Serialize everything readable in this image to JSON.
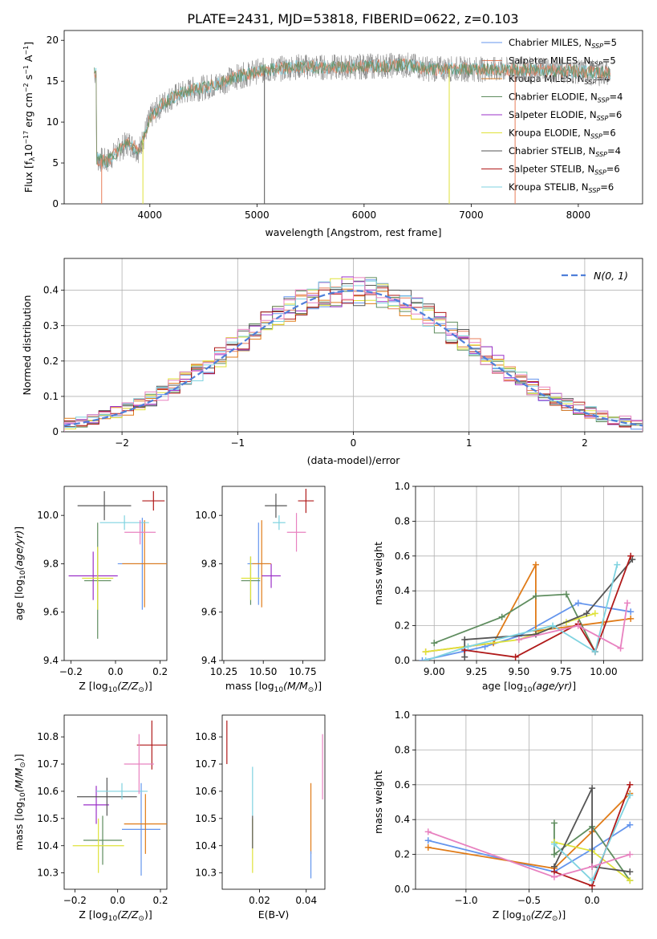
{
  "figure": {
    "title": "PLATE=2431, MJD=53818, FIBERID=0622, z=0.103"
  },
  "colors": {
    "Chabrier MILES": "#6495ed",
    "Salpeter MILES": "#e87d5a",
    "Kroupa MILES": "#e07b18",
    "Chabrier ELODIE": "#5f8d5f",
    "Salpeter ELODIE": "#9b30c8",
    "Kroupa ELODIE": "#dfe23a",
    "Chabrier STELIB": "#555555",
    "Salpeter STELIB": "#b01a1a",
    "Kroupa STELIB": "#7fd3e0",
    "data": "#808080",
    "normal": "#4f7fd9",
    "pink": "#e882c0",
    "olive": "#9acd32"
  },
  "chart_data": [
    {
      "id": "spectrum",
      "type": "line",
      "title": "PLATE=2431, MJD=53818, FIBERID=0622, z=0.103",
      "xlabel": "wavelength [Angstrom, rest frame]",
      "ylabel": "Flux [f",
      "xlim": [
        3200,
        8600
      ],
      "ylim": [
        0,
        21.2
      ],
      "xticks": [
        4000,
        5000,
        6000,
        7000,
        8000
      ],
      "yticks": [
        0,
        5,
        10,
        15,
        20
      ],
      "legend_position": "right",
      "legend": [
        {
          "label": "Chabrier MILES",
          "n": "5"
        },
        {
          "label": "Salpeter MILES",
          "n": "5"
        },
        {
          "label": "Kroupa MILES",
          "n": "4"
        },
        {
          "label": "Chabrier ELODIE",
          "n": "4"
        },
        {
          "label": "Salpeter ELODIE",
          "n": "6"
        },
        {
          "label": "Kroupa ELODIE",
          "n": "6"
        },
        {
          "label": "Chabrier STELIB",
          "n": "4"
        },
        {
          "label": "Salpeter STELIB",
          "n": "6"
        },
        {
          "label": "Kroupa STELIB",
          "n": "6"
        }
      ],
      "nssp_label": "N",
      "nssp_sub": "SSP",
      "series": {
        "x": [
          3500,
          3600,
          3700,
          3800,
          3900,
          4000,
          4100,
          4200,
          4300,
          4400,
          4500,
          4600,
          4700,
          4800,
          4900,
          5000,
          5200,
          5400,
          5600,
          5800,
          6000,
          6200,
          6400,
          6600,
          6800,
          7000,
          7200,
          7400,
          7600,
          7800,
          8000,
          8200,
          8300
        ],
        "y": [
          5.5,
          5.2,
          6.5,
          7.5,
          6.5,
          10.5,
          12.0,
          13.0,
          13.5,
          14.0,
          14.2,
          14.5,
          15.0,
          15.5,
          15.8,
          16.2,
          16.5,
          16.8,
          16.7,
          16.7,
          16.8,
          16.9,
          17.0,
          16.5,
          16.5,
          16.5,
          16.4,
          16.4,
          16.4,
          16.3,
          16.2,
          16.0,
          16.0
        ]
      }
    },
    {
      "id": "residuals",
      "type": "histogram",
      "xlabel": "(data-model)/error",
      "ylabel": "Normed distribution",
      "xlim": [
        -2.5,
        2.5
      ],
      "ylim": [
        0,
        0.49
      ],
      "xticks": [
        -2,
        -1,
        0,
        1,
        2
      ],
      "yticks": [
        0.0,
        0.1,
        0.2,
        0.3,
        0.4
      ],
      "grid": true,
      "legend_position": "top-right",
      "normal_label": "N(0, 1)",
      "bin_width": 0.1
    },
    {
      "id": "age-vs-z",
      "type": "scatter",
      "xlabel": "Z [log",
      "ylabel": "age  [log",
      "xlim": [
        -0.23,
        0.23
      ],
      "ylim": [
        9.4,
        10.12
      ],
      "xticks": [
        -0.2,
        0.0,
        0.2
      ],
      "yticks": [
        9.4,
        9.6,
        9.8,
        10.0
      ],
      "points": [
        {
          "model": "Chabrier MILES",
          "x": 0.12,
          "y": 9.8,
          "xerr": 0.11,
          "yerr": 0.19
        },
        {
          "model": "Kroupa MILES",
          "x": 0.13,
          "y": 9.8,
          "xerr": 0.1,
          "yerr": 0.18
        },
        {
          "model": "Chabrier ELODIE",
          "x": -0.08,
          "y": 9.73,
          "xerr": 0.06,
          "yerr": 0.24
        },
        {
          "model": "Salpeter ELODIE",
          "x": -0.1,
          "y": 9.75,
          "xerr": 0.11,
          "yerr": 0.1
        },
        {
          "model": "Kroupa ELODIE",
          "x": -0.08,
          "y": 9.74,
          "xerr": 0.07,
          "yerr": 0.13
        },
        {
          "model": "Chabrier STELIB",
          "x": -0.05,
          "y": 10.04,
          "xerr": 0.12,
          "yerr": 0.06
        },
        {
          "model": "Salpeter STELIB",
          "x": 0.17,
          "y": 10.06,
          "xerr": 0.05,
          "yerr": 0.04
        },
        {
          "model": "Kroupa STELIB",
          "x": 0.04,
          "y": 9.97,
          "xerr": 0.11,
          "yerr": 0.03
        },
        {
          "model": "pink",
          "x": 0.11,
          "y": 9.93,
          "xerr": 0.07,
          "yerr": 0.05
        }
      ]
    },
    {
      "id": "age-vs-mass",
      "type": "scatter",
      "xlabel": "mass [log",
      "ylabel": "",
      "xlim": [
        10.24,
        10.89
      ],
      "ylim": [
        9.4,
        10.12
      ],
      "xticks": [
        10.25,
        10.5,
        10.75
      ],
      "yticks": [
        9.4,
        9.6,
        9.8,
        10.0
      ],
      "points": [
        {
          "model": "Chabrier MILES",
          "x": 10.47,
          "y": 9.8,
          "xerr": 0.07,
          "yerr": 0.17
        },
        {
          "model": "Kroupa MILES",
          "x": 10.49,
          "y": 9.8,
          "xerr": 0.06,
          "yerr": 0.18
        },
        {
          "model": "Chabrier ELODIE",
          "x": 10.42,
          "y": 9.73,
          "xerr": 0.06,
          "yerr": 0.1
        },
        {
          "model": "Salpeter ELODIE",
          "x": 10.55,
          "y": 9.75,
          "xerr": 0.06,
          "yerr": 0.05
        },
        {
          "model": "Kroupa ELODIE",
          "x": 10.42,
          "y": 9.74,
          "xerr": 0.06,
          "yerr": 0.09
        },
        {
          "model": "Chabrier STELIB",
          "x": 10.58,
          "y": 10.04,
          "xerr": 0.07,
          "yerr": 0.05
        },
        {
          "model": "Salpeter STELIB",
          "x": 10.77,
          "y": 10.06,
          "xerr": 0.05,
          "yerr": 0.05
        },
        {
          "model": "Kroupa STELIB",
          "x": 10.6,
          "y": 9.97,
          "xerr": 0.04,
          "yerr": 0.03
        },
        {
          "model": "pink",
          "x": 10.71,
          "y": 9.93,
          "xerr": 0.06,
          "yerr": 0.08
        }
      ]
    },
    {
      "id": "mass-weight-vs-age",
      "type": "line",
      "xlabel": "age  [log",
      "ylabel": "mass weight",
      "xlim": [
        8.89,
        10.23
      ],
      "ylim": [
        0,
        1
      ],
      "xticks": [
        9.0,
        9.25,
        9.5,
        9.75,
        10.0
      ],
      "yticks": [
        0.0,
        0.2,
        0.4,
        0.6,
        0.8,
        1.0
      ],
      "grid": true,
      "series": [
        {
          "model": "Chabrier MILES",
          "x": [
            8.93,
            9.3,
            9.5,
            9.85,
            10.16
          ],
          "y": [
            0.0,
            0.08,
            0.14,
            0.33,
            0.28
          ]
        },
        {
          "model": "Kroupa MILES",
          "x": [
            8.95,
            9.35,
            9.6,
            9.6,
            10.0,
            10.16
          ],
          "y": [
            0.05,
            0.1,
            0.55,
            0.17,
            0.22,
            0.24
          ]
        },
        {
          "model": "Chabrier ELODIE",
          "x": [
            9.0,
            9.4,
            9.6,
            9.78,
            9.95
          ],
          "y": [
            0.1,
            0.25,
            0.37,
            0.38,
            0.05
          ]
        },
        {
          "model": "Kroupa ELODIE",
          "x": [
            8.95,
            9.5,
            9.78,
            9.95
          ],
          "y": [
            0.05,
            0.12,
            0.22,
            0.27
          ]
        },
        {
          "model": "Chabrier STELIB",
          "x": [
            9.18,
            9.18,
            9.6,
            9.9,
            10.17
          ],
          "y": [
            0.02,
            0.12,
            0.15,
            0.27,
            0.58
          ]
        },
        {
          "model": "Salpeter STELIB",
          "x": [
            9.18,
            9.48,
            9.85,
            9.95,
            10.16
          ],
          "y": [
            0.06,
            0.02,
            0.21,
            0.05,
            0.6
          ]
        },
        {
          "model": "Kroupa STELIB",
          "x": [
            8.95,
            9.2,
            9.7,
            9.95,
            10.08
          ],
          "y": [
            0.0,
            0.08,
            0.2,
            0.05,
            0.55
          ]
        },
        {
          "model": "pink",
          "x": [
            9.5,
            9.85,
            10.1,
            10.14
          ],
          "y": [
            0.12,
            0.2,
            0.07,
            0.33
          ]
        }
      ]
    },
    {
      "id": "mass-vs-z",
      "type": "scatter",
      "xlabel": "Z [log",
      "ylabel": "mass [log",
      "xlim": [
        -0.25,
        0.23
      ],
      "ylim": [
        10.24,
        10.88
      ],
      "xticks": [
        -0.2,
        0.0,
        0.2
      ],
      "yticks": [
        10.3,
        10.4,
        10.5,
        10.6,
        10.7,
        10.8
      ],
      "points": [
        {
          "model": "Chabrier MILES",
          "x": 0.11,
          "y": 10.46,
          "xerr": 0.09,
          "yerr": 0.17
        },
        {
          "model": "Kroupa MILES",
          "x": 0.13,
          "y": 10.48,
          "xerr": 0.1,
          "yerr": 0.11
        },
        {
          "model": "Chabrier ELODIE",
          "x": -0.07,
          "y": 10.42,
          "xerr": 0.09,
          "yerr": 0.09
        },
        {
          "model": "Salpeter ELODIE",
          "x": -0.1,
          "y": 10.55,
          "xerr": 0.06,
          "yerr": 0.07
        },
        {
          "model": "Kroupa ELODIE",
          "x": -0.09,
          "y": 10.4,
          "xerr": 0.12,
          "yerr": 0.1
        },
        {
          "model": "Chabrier STELIB",
          "x": -0.05,
          "y": 10.58,
          "xerr": 0.14,
          "yerr": 0.07
        },
        {
          "model": "Salpeter STELIB",
          "x": 0.16,
          "y": 10.77,
          "xerr": 0.07,
          "yerr": 0.09
        },
        {
          "model": "Kroupa STELIB",
          "x": 0.02,
          "y": 10.6,
          "xerr": 0.12,
          "yerr": 0.03
        },
        {
          "model": "pink",
          "x": 0.1,
          "y": 10.7,
          "xerr": 0.07,
          "yerr": 0.11
        }
      ]
    },
    {
      "id": "mass-vs-ebv",
      "type": "scatter",
      "xlabel": "E(B-V)",
      "ylabel": "",
      "xlim": [
        0.004,
        0.048
      ],
      "ylim": [
        10.24,
        10.88
      ],
      "xticks": [
        0.02,
        0.04
      ],
      "yticks": [
        10.3,
        10.4,
        10.5,
        10.6,
        10.7,
        10.8
      ],
      "points": [
        {
          "model": "Salpeter STELIB",
          "x": 0.006,
          "y": 10.78,
          "xerr": 0,
          "yerr": 0.08
        },
        {
          "model": "Kroupa STELIB",
          "x": 0.017,
          "y": 10.6,
          "xerr": 0,
          "yerr": 0.09
        },
        {
          "model": "Kroupa ELODIE",
          "x": 0.017,
          "y": 10.4,
          "xerr": 0,
          "yerr": 0.1
        },
        {
          "model": "Chabrier STELIB",
          "x": 0.017,
          "y": 10.45,
          "xerr": 0,
          "yerr": 0.06
        },
        {
          "model": "Kroupa MILES",
          "x": 0.042,
          "y": 10.5,
          "xerr": 0,
          "yerr": 0.13
        },
        {
          "model": "Chabrier MILES",
          "x": 0.042,
          "y": 10.33,
          "xerr": 0,
          "yerr": 0.05
        },
        {
          "model": "pink",
          "x": 0.047,
          "y": 10.69,
          "xerr": 0,
          "yerr": 0.12
        }
      ]
    },
    {
      "id": "mass-weight-vs-z",
      "type": "line",
      "xlabel": "Z [log",
      "ylabel": "mass weight",
      "xlim": [
        -1.4,
        0.4
      ],
      "ylim": [
        0,
        1
      ],
      "xticks": [
        -1.0,
        -0.5,
        0.0
      ],
      "yticks": [
        0.0,
        0.2,
        0.4,
        0.6,
        0.8,
        1.0
      ],
      "grid": true,
      "series": [
        {
          "model": "Chabrier MILES",
          "x": [
            -1.3,
            -0.3,
            0.0,
            0.3
          ],
          "y": [
            0.28,
            0.1,
            0.23,
            0.37
          ]
        },
        {
          "model": "Kroupa MILES",
          "x": [
            -1.3,
            -0.3,
            0.0,
            0.3
          ],
          "y": [
            0.24,
            0.12,
            0.33,
            0.55
          ]
        },
        {
          "model": "Chabrier ELODIE",
          "x": [
            -0.3,
            -0.3,
            0.0,
            0.3
          ],
          "y": [
            0.38,
            0.2,
            0.36,
            0.05
          ]
        },
        {
          "model": "Kroupa ELODIE",
          "x": [
            -0.3,
            0.0,
            0.3
          ],
          "y": [
            0.27,
            0.22,
            0.05
          ]
        },
        {
          "model": "Chabrier STELIB",
          "x": [
            -0.3,
            0.0,
            0.0,
            0.3
          ],
          "y": [
            0.13,
            0.58,
            0.13,
            0.1
          ]
        },
        {
          "model": "Salpeter STELIB",
          "x": [
            -0.3,
            0.0,
            0.3
          ],
          "y": [
            0.1,
            0.02,
            0.6
          ]
        },
        {
          "model": "Kroupa STELIB",
          "x": [
            -0.3,
            0.0,
            0.3
          ],
          "y": [
            0.26,
            0.05,
            0.54
          ]
        },
        {
          "model": "pink",
          "x": [
            -1.3,
            -0.3,
            0.0,
            0.3
          ],
          "y": [
            0.33,
            0.07,
            0.13,
            0.2
          ]
        }
      ]
    }
  ]
}
